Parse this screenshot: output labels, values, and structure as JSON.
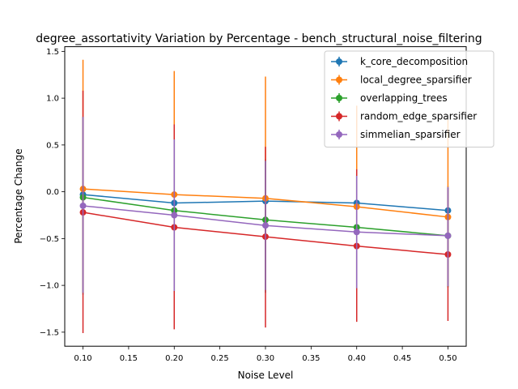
{
  "chart_data": {
    "type": "line",
    "title": "degree_assortativity Variation by Percentage - bench_structural_noise_filtering",
    "xlabel": "Noise Level",
    "ylabel": "Percentage Change",
    "x": [
      0.1,
      0.2,
      0.3,
      0.4,
      0.5
    ],
    "xlim": [
      0.08,
      0.52
    ],
    "ylim": [
      -1.65,
      1.55
    ],
    "xticks": [
      0.1,
      0.15,
      0.2,
      0.25,
      0.3,
      0.35,
      0.4,
      0.45,
      0.5
    ],
    "xtick_labels": [
      "0.10",
      "0.15",
      "0.20",
      "0.25",
      "0.30",
      "0.35",
      "0.40",
      "0.45",
      "0.50"
    ],
    "yticks": [
      -1.5,
      -1.0,
      -0.5,
      0.0,
      0.5,
      1.0,
      1.5
    ],
    "ytick_labels": [
      "−1.5",
      "−1.0",
      "−0.5",
      "0.0",
      "0.5",
      "1.0",
      "1.5"
    ],
    "grid": false,
    "legend_position": "top-right",
    "series": [
      {
        "name": "k_core_decomposition",
        "color": "#1f77b4",
        "values": [
          -0.03,
          -0.12,
          -0.1,
          -0.12,
          -0.2
        ],
        "err_low": [
          -1.1,
          -1.08,
          -1.08,
          -1.05,
          -1.02
        ],
        "err_high": [
          0.8,
          0.57,
          0.35,
          0.19,
          0.06
        ]
      },
      {
        "name": "local_degree_sparsifier",
        "color": "#ff7f0e",
        "values": [
          0.03,
          -0.03,
          -0.07,
          -0.16,
          -0.27
        ],
        "err_low": [
          -1.08,
          -1.06,
          -1.05,
          -1.03,
          -1.02
        ],
        "err_high": [
          1.41,
          1.29,
          1.23,
          0.92,
          0.77
        ]
      },
      {
        "name": "overlapping_trees",
        "color": "#2ca02c",
        "values": [
          -0.06,
          -0.2,
          -0.3,
          -0.38,
          -0.47
        ],
        "err_low": [
          -1.08,
          -1.06,
          -1.05,
          -1.03,
          -1.02
        ],
        "err_high": [
          0.8,
          0.56,
          0.33,
          0.17,
          0.04
        ]
      },
      {
        "name": "random_edge_sparsifier",
        "color": "#d62728",
        "values": [
          -0.22,
          -0.38,
          -0.48,
          -0.58,
          -0.67
        ],
        "err_low": [
          -1.51,
          -1.47,
          -1.45,
          -1.39,
          -1.38
        ],
        "err_high": [
          1.08,
          0.72,
          0.48,
          0.24,
          0.04
        ]
      },
      {
        "name": "simmelian_sparsifier",
        "color": "#9467bd",
        "values": [
          -0.15,
          -0.25,
          -0.36,
          -0.43,
          -0.47
        ],
        "err_low": [
          -1.08,
          -1.06,
          -1.05,
          -1.03,
          -1.01
        ],
        "err_high": [
          0.8,
          0.56,
          0.33,
          0.17,
          0.05
        ]
      }
    ]
  }
}
